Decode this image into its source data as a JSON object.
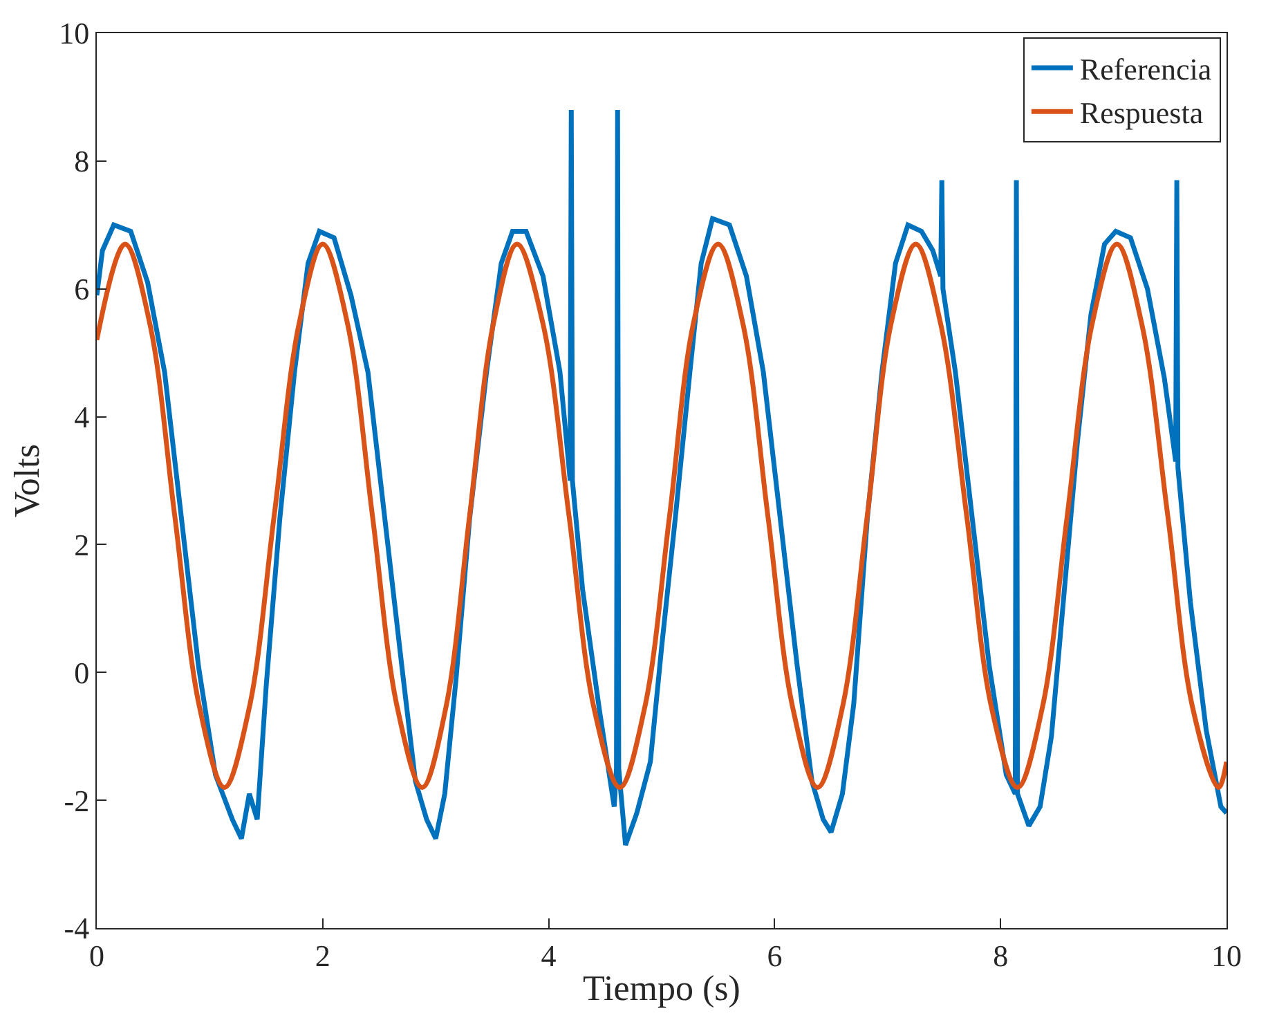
{
  "chart_data": {
    "type": "line",
    "xlabel": "Tiempo (s)",
    "ylabel": "Volts",
    "xlim": [
      0,
      10
    ],
    "ylim": [
      -4,
      10
    ],
    "xticks": [
      0,
      2,
      4,
      6,
      8,
      10
    ],
    "yticks": [
      -4,
      -2,
      0,
      2,
      4,
      6,
      8,
      10
    ],
    "legend": "top right",
    "marker": "none",
    "line_style": "solid",
    "series": [
      {
        "name": "Referencia",
        "color": "#0072bd",
        "x": [
          0,
          0.05,
          0.15,
          0.3,
          0.45,
          0.6,
          0.75,
          0.9,
          1.05,
          1.2,
          1.28,
          1.35,
          1.42,
          1.5,
          1.62,
          1.75,
          1.87,
          1.97,
          2.1,
          2.25,
          2.4,
          2.55,
          2.7,
          2.82,
          2.92,
          3.0,
          3.08,
          3.18,
          3.3,
          3.45,
          3.58,
          3.68,
          3.8,
          3.95,
          4.1,
          4.18,
          4.19,
          4.2,
          4.21,
          4.3,
          4.45,
          4.58,
          4.6,
          4.61,
          4.62,
          4.68,
          4.78,
          4.9,
          5.0,
          5.12,
          5.25,
          5.35,
          5.45,
          5.6,
          5.75,
          5.9,
          6.05,
          6.2,
          6.33,
          6.43,
          6.5,
          6.6,
          6.7,
          6.82,
          6.95,
          7.07,
          7.18,
          7.3,
          7.4,
          7.47,
          7.48,
          7.49,
          7.6,
          7.75,
          7.9,
          8.05,
          8.13,
          8.14,
          8.15,
          8.25,
          8.35,
          8.45,
          8.55,
          8.68,
          8.8,
          8.92,
          9.02,
          9.15,
          9.3,
          9.45,
          9.55,
          9.56,
          9.57,
          9.68,
          9.82,
          9.95,
          10
        ],
        "values": [
          5.9,
          6.6,
          7.0,
          6.9,
          6.1,
          4.7,
          2.4,
          0.1,
          -1.6,
          -2.3,
          -2.6,
          -1.9,
          -2.3,
          -0.2,
          2.4,
          4.7,
          6.4,
          6.9,
          6.8,
          5.9,
          4.7,
          2.4,
          0.1,
          -1.7,
          -2.3,
          -2.6,
          -1.9,
          -0.1,
          2.4,
          4.7,
          6.4,
          6.9,
          6.9,
          6.2,
          4.7,
          3.2,
          3.0,
          8.8,
          3.0,
          1.3,
          -0.6,
          -2.1,
          -1.5,
          8.8,
          -1.5,
          -2.7,
          -2.2,
          -1.4,
          0.4,
          2.4,
          4.7,
          6.4,
          7.1,
          7.0,
          6.2,
          4.7,
          2.4,
          0.1,
          -1.7,
          -2.3,
          -2.5,
          -1.9,
          -0.5,
          2.4,
          4.7,
          6.4,
          7.0,
          6.9,
          6.6,
          6.2,
          7.7,
          6.0,
          4.7,
          2.4,
          0.1,
          -1.6,
          -1.9,
          7.7,
          -1.9,
          -2.4,
          -2.1,
          -1.0,
          1.0,
          3.6,
          5.6,
          6.7,
          6.9,
          6.8,
          6.0,
          4.6,
          3.3,
          7.7,
          3.2,
          1.1,
          -0.9,
          -2.1,
          -2.2
        ]
      },
      {
        "name": "Respuesta",
        "color": "#d95319",
        "x": [
          0,
          0.25,
          0.47,
          0.69,
          0.91,
          1.13,
          1.35,
          1.57,
          1.79,
          2.0,
          2.22,
          2.44,
          2.66,
          2.88,
          3.09,
          3.3,
          3.51,
          3.72,
          3.95,
          4.18,
          4.4,
          4.63,
          4.85,
          5.07,
          5.28,
          5.5,
          5.72,
          5.94,
          6.16,
          6.38,
          6.6,
          6.82,
          7.03,
          7.25,
          7.47,
          7.7,
          7.92,
          8.15,
          8.37,
          8.59,
          8.81,
          9.03,
          9.25,
          9.48,
          9.7,
          9.93,
          10
        ],
        "values": [
          5.2,
          6.7,
          5.45,
          2.45,
          -0.55,
          -1.8,
          -0.55,
          2.45,
          5.45,
          6.7,
          5.45,
          2.45,
          -0.55,
          -1.8,
          -0.55,
          2.45,
          5.45,
          6.7,
          5.45,
          2.45,
          -0.55,
          -1.8,
          -0.55,
          2.45,
          5.45,
          6.7,
          5.45,
          2.45,
          -0.55,
          -1.8,
          -0.55,
          2.45,
          5.45,
          6.7,
          5.45,
          2.45,
          -0.55,
          -1.8,
          -0.55,
          2.45,
          5.45,
          6.7,
          5.45,
          2.45,
          -0.55,
          -1.8,
          -1.4
        ]
      }
    ]
  }
}
